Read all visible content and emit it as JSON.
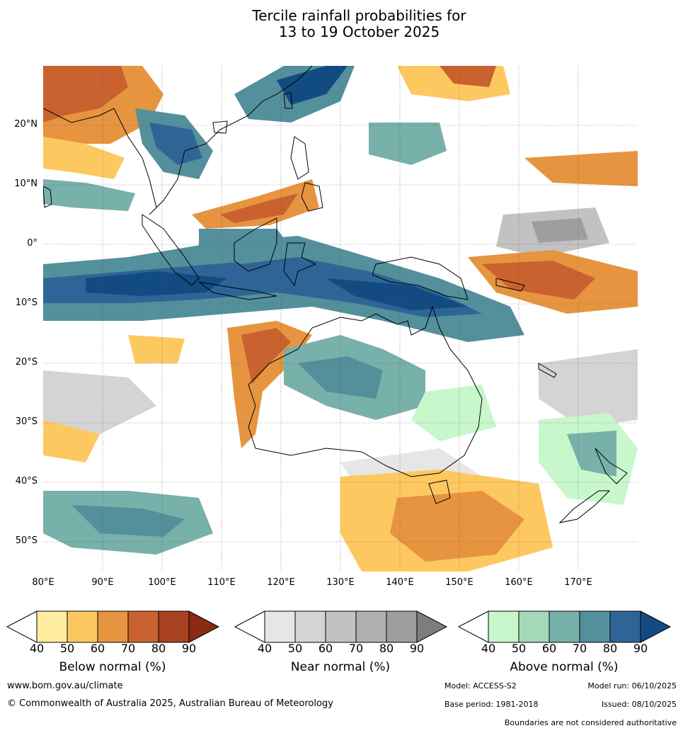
{
  "title": {
    "line1": "Tercile rainfall probabilities for",
    "line2": "13 to 19 October 2025"
  },
  "map": {
    "lat_labels": [
      "20°N",
      "10°N",
      "0°",
      "10°S",
      "20°S",
      "30°S",
      "40°S",
      "50°S"
    ],
    "lon_labels": [
      "80°E",
      "90°E",
      "100°E",
      "110°E",
      "120°E",
      "130°E",
      "140°E",
      "150°E",
      "160°E",
      "170°E"
    ]
  },
  "colorbars": [
    {
      "label": "Below normal (%)",
      "ticks": [
        "40",
        "50",
        "60",
        "70",
        "80",
        "90"
      ],
      "colors": [
        "#ffffff",
        "#ffeda0",
        "#fec860",
        "#e69440",
        "#c9622e",
        "#a84220",
        "#8b2a12"
      ]
    },
    {
      "label": "Near normal (%)",
      "ticks": [
        "40",
        "50",
        "60",
        "70",
        "80",
        "90"
      ],
      "colors": [
        "#ffffff",
        "#e6e6e6",
        "#d4d4d4",
        "#c2c2c2",
        "#b0b0b0",
        "#9e9e9e",
        "#7d7d7d"
      ]
    },
    {
      "label": "Above normal (%)",
      "ticks": [
        "40",
        "50",
        "60",
        "70",
        "80",
        "90"
      ],
      "colors": [
        "#ffffff",
        "#c7f7cb",
        "#a3d9b8",
        "#78b0aa",
        "#548f9c",
        "#2e6596",
        "#124b82"
      ]
    }
  ],
  "footer": {
    "website": "www.bom.gov.au/climate",
    "copyright": "© Commonwealth of Australia 2025, Australian Bureau of Meteorology",
    "model": "Model: ACCESS-S2",
    "model_run": "Model run: 06/10/2025",
    "base_period": "Base period: 1981-2018",
    "issued": "Issued: 08/10/2025",
    "disclaimer": "Boundaries are not considered authoritative"
  }
}
